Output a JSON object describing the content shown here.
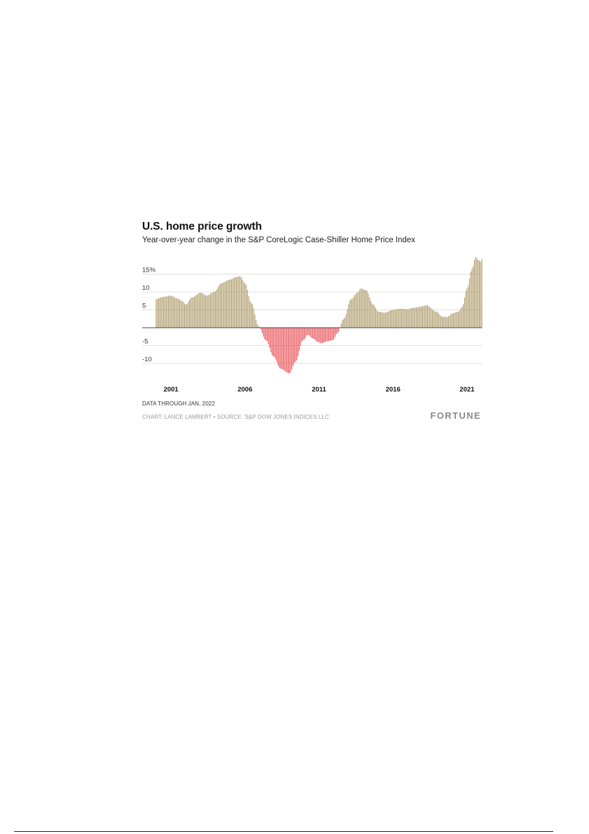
{
  "chart_data": {
    "type": "bar",
    "title": "U.S. home price growth",
    "subtitle": "Year-over-year change in the S&P CoreLogic Case-Shiller Home Price Index",
    "ylabel": "",
    "xlabel": "",
    "ylim": [
      -13.5,
      20
    ],
    "yticks": [
      {
        "value": 15,
        "label": "15%"
      },
      {
        "value": 10,
        "label": "10"
      },
      {
        "value": 5,
        "label": "5"
      },
      {
        "value": -5,
        "label": "-5"
      },
      {
        "value": -10,
        "label": "-10"
      }
    ],
    "xticks": [
      {
        "year": 2001,
        "label": "2001"
      },
      {
        "year": 2006,
        "label": "2006"
      },
      {
        "year": 2011,
        "label": "2011"
      },
      {
        "year": 2016,
        "label": "2016"
      },
      {
        "year": 2021,
        "label": "2021"
      }
    ],
    "grid": true,
    "start": "2000-01",
    "end": "2022-01",
    "anchors": [
      [
        "2000-01",
        8.0
      ],
      [
        "2000-06",
        8.6
      ],
      [
        "2001-01",
        9.0
      ],
      [
        "2001-06",
        8.2
      ],
      [
        "2001-10",
        7.5
      ],
      [
        "2002-01",
        6.5
      ],
      [
        "2002-06",
        8.5
      ],
      [
        "2003-01",
        9.8
      ],
      [
        "2003-06",
        9.0
      ],
      [
        "2003-12",
        10.0
      ],
      [
        "2004-06",
        12.5
      ],
      [
        "2005-01",
        13.5
      ],
      [
        "2005-06",
        14.2
      ],
      [
        "2005-09",
        14.4
      ],
      [
        "2006-01",
        12.5
      ],
      [
        "2006-06",
        7.0
      ],
      [
        "2006-12",
        0.5
      ],
      [
        "2007-06",
        -3.5
      ],
      [
        "2007-12",
        -8.0
      ],
      [
        "2008-06",
        -11.5
      ],
      [
        "2009-01",
        -12.8
      ],
      [
        "2009-06",
        -9.5
      ],
      [
        "2009-12",
        -3.5
      ],
      [
        "2010-04",
        -2.0
      ],
      [
        "2010-08",
        -3.0
      ],
      [
        "2010-12",
        -4.0
      ],
      [
        "2011-03",
        -4.3
      ],
      [
        "2011-08",
        -3.8
      ],
      [
        "2011-12",
        -3.5
      ],
      [
        "2012-04",
        -1.5
      ],
      [
        "2012-09",
        2.5
      ],
      [
        "2013-03",
        8.0
      ],
      [
        "2013-08",
        9.8
      ],
      [
        "2013-11",
        11.0
      ],
      [
        "2014-03",
        10.5
      ],
      [
        "2014-09",
        6.5
      ],
      [
        "2015-01",
        4.5
      ],
      [
        "2015-06",
        4.2
      ],
      [
        "2016-01",
        5.0
      ],
      [
        "2016-06",
        5.3
      ],
      [
        "2017-01",
        5.2
      ],
      [
        "2017-06",
        5.6
      ],
      [
        "2018-01",
        6.0
      ],
      [
        "2018-04",
        6.3
      ],
      [
        "2018-12",
        4.5
      ],
      [
        "2019-05",
        3.1
      ],
      [
        "2019-09",
        3.0
      ],
      [
        "2020-01",
        4.0
      ],
      [
        "2020-06",
        4.5
      ],
      [
        "2020-09",
        5.8
      ],
      [
        "2021-01",
        11.0
      ],
      [
        "2021-05",
        16.5
      ],
      [
        "2021-08",
        19.8
      ],
      [
        "2021-10",
        19.0
      ],
      [
        "2021-12",
        18.5
      ],
      [
        "2022-01",
        19.2
      ]
    ],
    "positive_color": "#a99764",
    "negative_color": "#e8474f"
  },
  "footer": {
    "note": "DATA THROUGH JAN. 2022",
    "credit": "CHART: LANCE LAMBERT • SOURCE: S&P DOW JONES INDICES LLC",
    "brand": "FORTUNE"
  }
}
